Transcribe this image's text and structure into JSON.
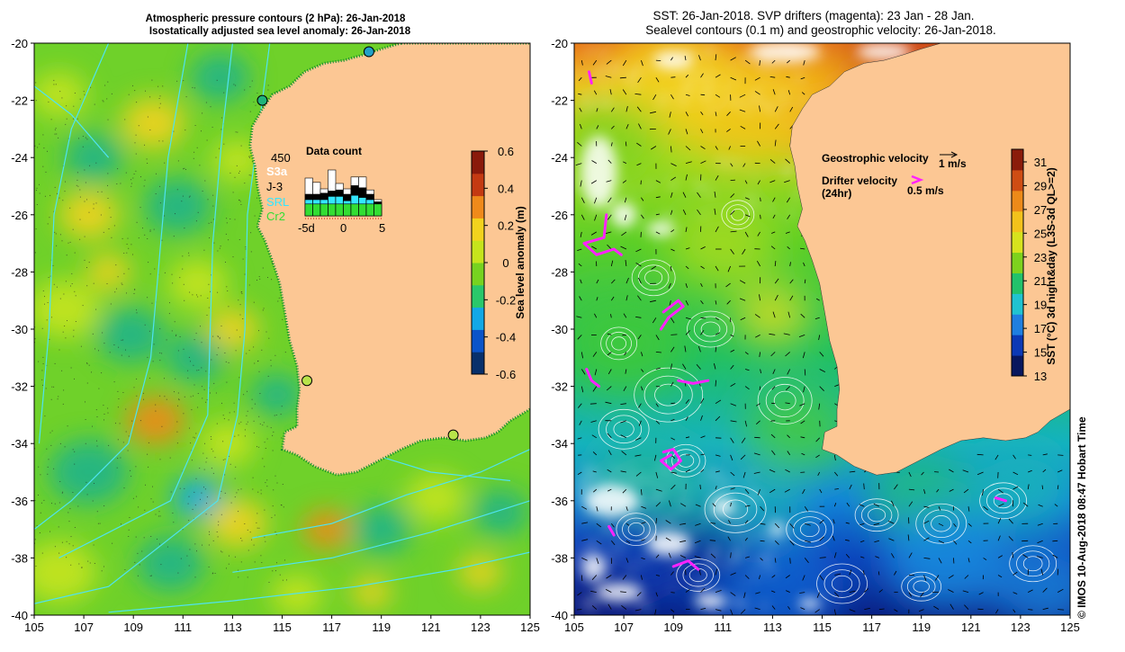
{
  "left_panel": {
    "title_line1": "Atmospheric pressure contours (2 hPa): 26-Jan-2018",
    "title_line2": "Isostatically adjusted sea level anomaly: 26-Jan-2018",
    "x_ticks": [
      "105",
      "107",
      "109",
      "111",
      "113",
      "115",
      "117",
      "119",
      "121",
      "123",
      "125"
    ],
    "y_ticks": [
      "-20",
      "-22",
      "-24",
      "-26",
      "-28",
      "-30",
      "-32",
      "-34",
      "-36",
      "-38",
      "-40"
    ],
    "colorbar": {
      "label": "Sea level anomaly (m)",
      "ticks": [
        "0.6",
        "0.4",
        "0.2",
        "0",
        "-0.2",
        "-0.4",
        "-0.6"
      ],
      "colors": [
        "#08306b",
        "#0b54c9",
        "#12a8e6",
        "#2ac86a",
        "#77d320",
        "#c6e41c",
        "#f2d31d",
        "#ef8a1b",
        "#c43a12",
        "#8a1a0b"
      ]
    },
    "data_count": {
      "title": "Data count",
      "max_label": "450",
      "satellites": [
        {
          "name": "S3a",
          "color": "#ffffff"
        },
        {
          "name": "J-3",
          "color": "#000000"
        },
        {
          "name": "SRL",
          "color": "#33e6ff"
        },
        {
          "name": "Cr2",
          "color": "#33dd33"
        }
      ],
      "x_ticks": [
        "-5d",
        "0",
        "5"
      ]
    },
    "stations": [
      {
        "name": "station-a",
        "lon": 118.5,
        "lat": -20.3,
        "color": "#22a0c8"
      },
      {
        "name": "station-b",
        "lon": 114.2,
        "lat": -22.0,
        "color": "#1fb47a"
      },
      {
        "name": "station-c",
        "lon": 116.0,
        "lat": -31.8,
        "color": "#b8e34a"
      },
      {
        "name": "station-d",
        "lon": 121.9,
        "lat": -33.7,
        "color": "#b8e34a"
      }
    ]
  },
  "right_panel": {
    "title_line1": "SST: 26-Jan-2018. SVP drifters (magenta): 23 Jan - 28 Jan.",
    "title_line2": "Sealevel contours (0.1 m) and geostrophic velocity: 26-Jan-2018.",
    "x_ticks": [
      "105",
      "107",
      "109",
      "111",
      "113",
      "115",
      "117",
      "119",
      "121",
      "123",
      "125"
    ],
    "y_ticks": [
      "-20",
      "-22",
      "-24",
      "-26",
      "-28",
      "-30",
      "-32",
      "-34",
      "-36",
      "-38",
      "-40"
    ],
    "legend": {
      "geo_label": "Geostrophic velocity",
      "geo_scale": "1 m/s",
      "drifter_label1": "Drifter velocity",
      "drifter_label2": "(24hr)",
      "drifter_scale": "0.5 m/s"
    },
    "colorbar": {
      "label": "SST (°C) 3d night&day (L3S-3d QL>=2)",
      "ticks": [
        "31",
        "29",
        "27",
        "25",
        "23",
        "21",
        "19",
        "17",
        "15",
        "13"
      ],
      "colors": [
        "#08175e",
        "#0c39b5",
        "#1f7fe0",
        "#20c3d0",
        "#22c26b",
        "#7ed21d",
        "#d7e21d",
        "#f3c21b",
        "#ec8a19",
        "#cf4d13",
        "#8b1c0b"
      ]
    },
    "credit": "© IMOS 10-Aug-2018 08:47 Hobart Time"
  },
  "colors": {
    "land": "#fcc794",
    "contour": "#4fe3f0",
    "sst_contour": "#ffffff",
    "arrows": "#000000"
  }
}
